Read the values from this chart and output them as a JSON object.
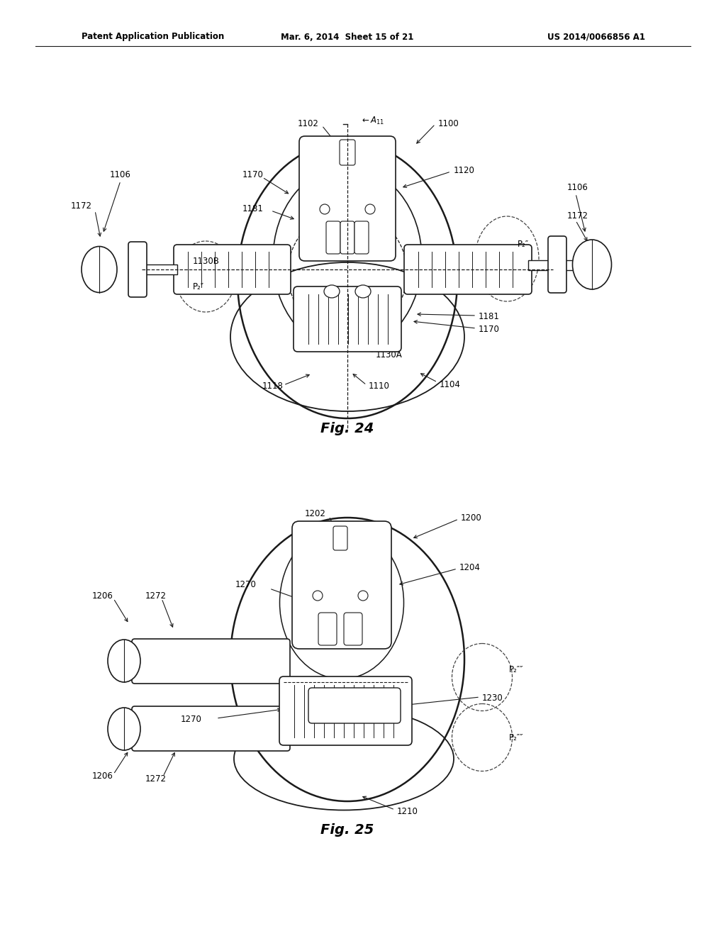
{
  "header_left": "Patent Application Publication",
  "header_mid": "Mar. 6, 2014  Sheet 15 of 21",
  "header_right": "US 2014/0066856 A1",
  "fig24_label": "Fig. 24",
  "fig25_label": "Fig. 25",
  "bg_color": "#ffffff",
  "lc": "#1a1a1a",
  "dc": "#444444"
}
